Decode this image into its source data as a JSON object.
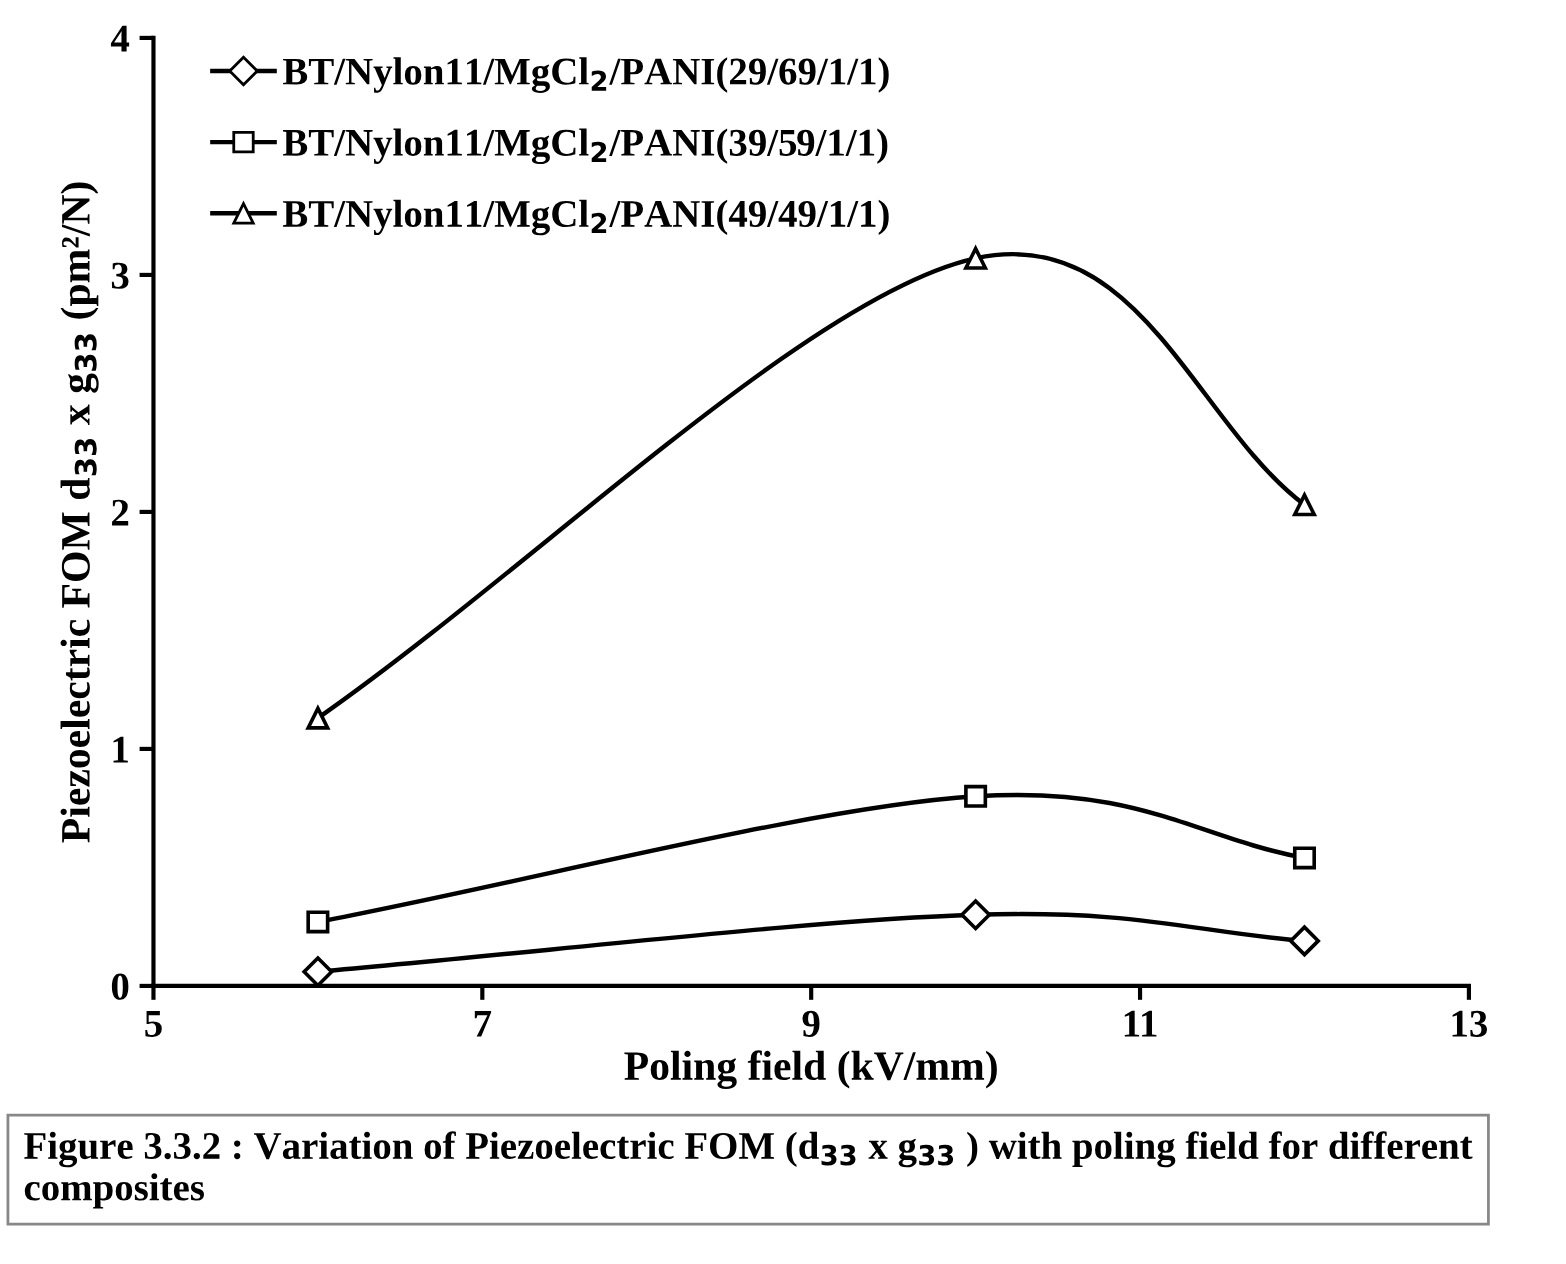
{
  "chart_data": {
    "type": "line",
    "xlabel": "Poling field (kV/mm)",
    "ylabel": "Piezoelectric FOM d$_{33}$ x g$_{33}$ (pm²/N)",
    "x": [
      6,
      10,
      12
    ],
    "series": [
      {
        "name": "BT/Nylon11/MgCl$_{2}$/PANI(29/69/1/1)",
        "color": "#000000",
        "marker": "diamond",
        "values": [
          0.06,
          0.3,
          0.19
        ]
      },
      {
        "name": "BT/Nylon11/MgCl$_{2}$/PANI(39/59/1/1)",
        "color": "#000000",
        "marker": "square",
        "values": [
          0.27,
          0.8,
          0.54
        ]
      },
      {
        "name": "BT/Nylon11/MgCl$_{2}$/PANI(49/49/1/1)",
        "color": "#000000",
        "marker": "triangle",
        "values": [
          1.13,
          3.07,
          2.03
        ]
      }
    ],
    "xlim": [
      5,
      13
    ],
    "xticks": [
      5,
      7,
      9,
      11,
      13
    ],
    "ylim": [
      0,
      4
    ],
    "yticks": [
      0,
      1,
      2,
      3,
      4
    ],
    "grid": false,
    "legend": "top left",
    "line_style": "solid",
    "annotations": [
      "Figure 3.3.2 : Variation of Piezoelectric FOM (d$_{33}$ x g$_{33}$ ) with poling field for different composites"
    ]
  }
}
